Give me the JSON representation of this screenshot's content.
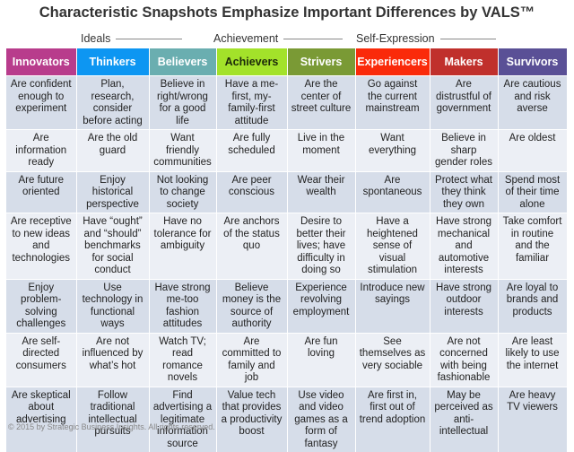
{
  "title": "Characteristic Snapshots Emphasize Important Differences by VALS™",
  "spectrum": [
    {
      "label": "Ideals"
    },
    {
      "label": "Achievement"
    },
    {
      "label": "Self-Expression"
    }
  ],
  "columns": [
    {
      "label": "Innovators",
      "color": "#b83c8c",
      "text_color": "#ffffff"
    },
    {
      "label": "Thinkers",
      "color": "#0d96f2",
      "text_color": "#ffffff"
    },
    {
      "label": "Believers",
      "color": "#6aaeb0",
      "text_color": "#ffffff"
    },
    {
      "label": "Achievers",
      "color": "#a3e22a",
      "text_color": "#1d2a0a"
    },
    {
      "label": "Strivers",
      "color": "#7a9a35",
      "text_color": "#ffffff"
    },
    {
      "label": "Experiencers",
      "color": "#fa2a0a",
      "text_color": "#ffffff"
    },
    {
      "label": "Makers",
      "color": "#c0302c",
      "text_color": "#ffffff"
    },
    {
      "label": "Survivors",
      "color": "#5a5096",
      "text_color": "#ffffff"
    }
  ],
  "rows": [
    [
      "Are confident enough to experiment",
      "Plan, research, consider before acting",
      "Believe in right/wrong for a good life",
      "Have a me-first, my-family-first attitude",
      "Are the center of street culture",
      "Go against the current mainstream",
      "Are distrustful of government",
      "Are cautious and risk averse"
    ],
    [
      "Are information ready",
      "Are the old guard",
      "Want friendly communities",
      "Are fully scheduled",
      "Live in the moment",
      "Want everything",
      "Believe in sharp gender roles",
      "Are oldest"
    ],
    [
      "Are future oriented",
      "Enjoy historical perspective",
      "Not looking to change society",
      "Are peer conscious",
      "Wear their wealth",
      "Are spontaneous",
      "Protect what they think they own",
      "Spend most of their time alone"
    ],
    [
      "Are receptive to new ideas and technologies",
      "Have “ought” and “should” benchmarks for social conduct",
      "Have no tolerance for ambiguity",
      "Are anchors of the status quo",
      "Desire to better their lives; have difficulty in doing so",
      "Have a heightened sense of visual stimulation",
      "Have strong mechanical and automotive interests",
      "Take comfort in routine and the familiar"
    ],
    [
      "Enjoy problem-solving challenges",
      "Use technology in functional ways",
      "Have strong me-too fashion attitudes",
      "Believe money is the source of authority",
      "Experience revolving employment",
      "Introduce new sayings",
      "Have strong outdoor interests",
      "Are loyal to brands and products"
    ],
    [
      "Are self-directed consumers",
      "Are not influenced by what’s hot",
      "Watch TV; read romance novels",
      "Are committed to family and job",
      "Are fun loving",
      "See themselves as very sociable",
      "Are not concerned with being fashionable",
      "Are least likely to use the internet"
    ],
    [
      "Are skeptical about advertising",
      "Follow traditional intellectual pursuits",
      "Find advertising a legitimate information source",
      "Value tech that provides a productivity boost",
      "Use video and video games as a form of fantasy",
      "Are first in, first out of trend adoption",
      "May be perceived as anti-intellectual",
      "Are heavy TV viewers"
    ]
  ],
  "footer": "© 2015 by Strategic Business Insights. All rights reserved."
}
